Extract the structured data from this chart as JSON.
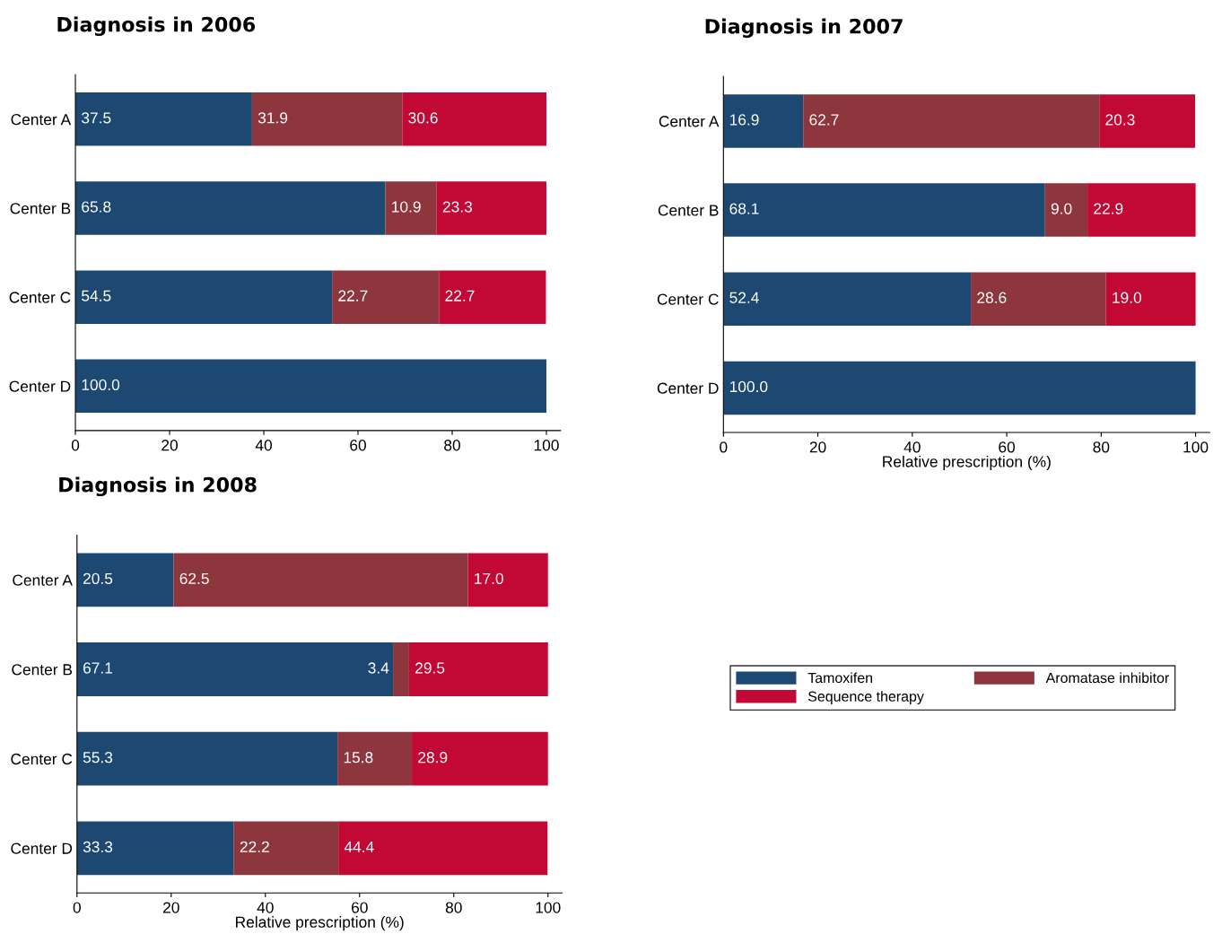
{
  "chart_data": [
    {
      "type": "bar",
      "orientation": "horizontal",
      "stacked": true,
      "title": "Diagnosis in 2006",
      "categories": [
        "Center A",
        "Center B",
        "Center C",
        "Center D"
      ],
      "xlim": [
        0,
        103
      ],
      "xticks": [
        0,
        20,
        40,
        60,
        80,
        100
      ],
      "grid": false,
      "series": [
        {
          "color": "#1c4872",
          "values": [
            37.5,
            65.8,
            54.5,
            100
          ],
          "value_labels": [
            "37.5",
            "65.8",
            "54.5",
            "100.0"
          ]
        },
        {
          "color": "#8e363d",
          "values": [
            31.9,
            10.9,
            22.7,
            null
          ],
          "value_labels": [
            "31.9",
            "10.9",
            "22.7",
            null
          ]
        },
        {
          "color": "#c20834",
          "values": [
            30.6,
            23.3,
            22.7,
            null
          ],
          "value_labels": [
            "30.6",
            "23.3",
            "22.7",
            null
          ]
        }
      ]
    },
    {
      "type": "bar",
      "orientation": "horizontal",
      "stacked": true,
      "title": "Diagnosis in 2007",
      "xlabel": "Relative prescription (%)",
      "categories": [
        "Center A",
        "Center B",
        "Center C",
        "Center D"
      ],
      "xlim": [
        0,
        103
      ],
      "xticks": [
        0,
        20,
        40,
        60,
        80,
        100
      ],
      "grid": false,
      "legend": "bottom",
      "series": [
        {
          "name": "Tamoxifen",
          "color": "#1c4872",
          "values": [
            16.9,
            68.1,
            52.4,
            100
          ],
          "value_labels": [
            "16.9",
            "68.1",
            "52.4",
            "100.0"
          ]
        },
        {
          "name": "Aromatase inhibitor",
          "color": "#8e363d",
          "values": [
            62.7,
            9,
            28.6,
            null
          ],
          "value_labels": [
            "62.7",
            "9.0",
            "28.6",
            null
          ]
        },
        {
          "name": "Sequence therapy",
          "color": "#c20834",
          "values": [
            20.3,
            22.9,
            19,
            null
          ],
          "value_labels": [
            "20.3",
            "22.9",
            "19.0",
            null
          ]
        }
      ]
    },
    {
      "type": "bar",
      "orientation": "horizontal",
      "stacked": true,
      "title": "Diagnosis in 2008",
      "xlabel": "Relative prescription (%)",
      "categories": [
        "Center A",
        "Center B",
        "Center C",
        "Center D"
      ],
      "xlim": [
        0,
        103
      ],
      "xticks": [
        0,
        20,
        40,
        60,
        80,
        100
      ],
      "grid": false,
      "series": [
        {
          "color": "#1c4872",
          "values": [
            20.5,
            67.1,
            55.3,
            33.3
          ],
          "value_labels": [
            "20.5",
            "67.1",
            "55.3",
            "33.3"
          ]
        },
        {
          "color": "#8e363d",
          "values": [
            62.5,
            3.4,
            15.8,
            22.2
          ],
          "value_labels": [
            "62.5",
            "3.4",
            "15.8",
            "22.2"
          ]
        },
        {
          "color": "#c20834",
          "values": [
            17,
            29.5,
            28.9,
            44.4
          ],
          "value_labels": [
            "17.0",
            "29.5",
            "28.9",
            "44.4"
          ]
        }
      ]
    }
  ]
}
